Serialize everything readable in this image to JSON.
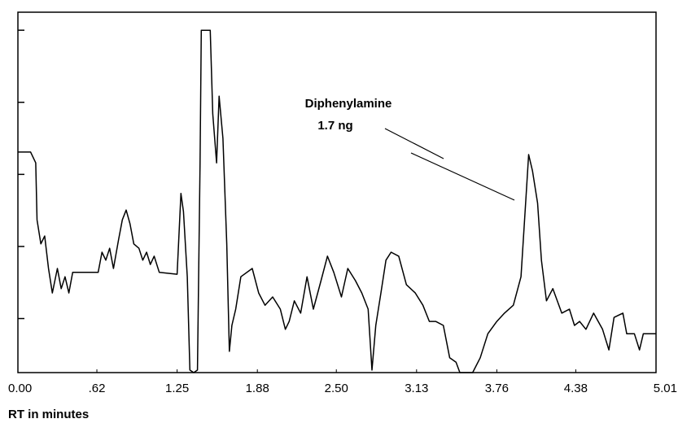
{
  "chart_data": {
    "type": "line",
    "annotations": [
      "Diphenylamine",
      "1.7 ng"
    ],
    "x_label": "RT in minutes",
    "xlim": [
      0,
      5.01
    ],
    "xticks": [
      {
        "value": 0,
        "label": "0.00"
      },
      {
        "value": 0.62,
        "label": ".62"
      },
      1.25,
      1.88,
      {
        "value": 2.5,
        "label": "2.50"
      },
      3.13,
      3.76,
      4.38,
      5.01
    ],
    "ylim": [
      0,
      100
    ],
    "yticks": [
      15,
      35,
      55,
      75,
      95
    ],
    "color": "#000000",
    "x": [
      0,
      0.1,
      0.14,
      0.15,
      0.18,
      0.21,
      0.24,
      0.27,
      0.31,
      0.34,
      0.37,
      0.4,
      0.43,
      0.63,
      0.66,
      0.69,
      0.72,
      0.75,
      0.79,
      0.82,
      0.85,
      0.88,
      0.91,
      0.95,
      0.98,
      1.01,
      1.04,
      1.07,
      1.11,
      1.25,
      1.28,
      1.3,
      1.33,
      1.35,
      1.38,
      1.41,
      1.43,
      1.44,
      1.51,
      1.53,
      1.56,
      1.58,
      1.61,
      1.64,
      1.66,
      1.68,
      1.71,
      1.75,
      1.84,
      1.89,
      1.94,
      2.0,
      2.06,
      2.1,
      2.13,
      2.17,
      2.22,
      2.27,
      2.32,
      2.38,
      2.43,
      2.48,
      2.54,
      2.59,
      2.65,
      2.7,
      2.75,
      2.78,
      2.81,
      2.85,
      2.89,
      2.93,
      2.99,
      3.05,
      3.12,
      3.18,
      3.23,
      3.28,
      3.34,
      3.39,
      3.44,
      3.47,
      3.57,
      3.63,
      3.69,
      3.76,
      3.82,
      3.89,
      3.95,
      3.99,
      4.01,
      4.04,
      4.08,
      4.11,
      4.15,
      4.2,
      4.27,
      4.33,
      4.37,
      4.41,
      4.46,
      4.52,
      4.59,
      4.64,
      4.68,
      4.75,
      4.78,
      4.84,
      4.88,
      4.91,
      5.01
    ],
    "values": [
      61.2,
      61.2,
      58.2,
      42.4,
      35.7,
      37.9,
      28.9,
      22.1,
      28.9,
      23.3,
      26.6,
      22.1,
      27.8,
      27.8,
      33.4,
      31.2,
      34.5,
      28.9,
      36.8,
      42.4,
      45.1,
      41.3,
      35.7,
      34.5,
      31.2,
      33.4,
      30.0,
      32.3,
      27.8,
      27.3,
      49.7,
      44.7,
      26.6,
      0.7,
      0,
      0.7,
      58.2,
      95.0,
      95.0,
      71.8,
      58.2,
      76.7,
      65.0,
      35.7,
      5.9,
      13.1,
      17.6,
      26.6,
      28.9,
      22.1,
      18.7,
      21.0,
      17.6,
      12.0,
      14.2,
      19.9,
      16.5,
      26.6,
      17.6,
      25.5,
      32.3,
      27.8,
      21.0,
      28.9,
      25.5,
      22.1,
      17.6,
      0.7,
      13.1,
      22.1,
      31.2,
      33.4,
      32.3,
      24.4,
      22.1,
      18.7,
      14.2,
      14.2,
      13.1,
      4.1,
      2.9,
      0,
      0,
      4.1,
      10.8,
      14.2,
      16.5,
      18.7,
      26.6,
      49.2,
      60.5,
      56.0,
      47.0,
      31.2,
      19.9,
      23.3,
      16.5,
      17.6,
      13.1,
      14.2,
      12.0,
      16.5,
      12.0,
      6.3,
      15.3,
      16.5,
      10.8,
      10.8,
      6.3,
      10.8,
      10.8
    ]
  }
}
